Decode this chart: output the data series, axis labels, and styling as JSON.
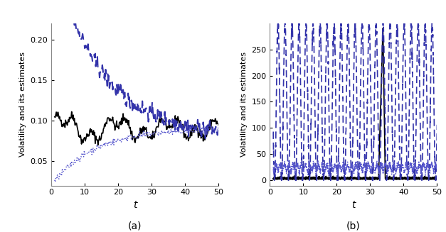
{
  "fig_width": 6.27,
  "fig_height": 3.27,
  "dpi": 100,
  "background_color": "#ffffff",
  "panel_a": {
    "xlim": [
      0,
      50
    ],
    "ylim": [
      0.02,
      0.22
    ],
    "yticks": [
      0.05,
      0.1,
      0.15,
      0.2
    ],
    "xticks": [
      0,
      10,
      20,
      30,
      40,
      50
    ],
    "xlabel": "t",
    "ylabel": "Volatility and its estimates",
    "label": "(a)",
    "solid_color": "#000000",
    "dashed_color": "#3333aa",
    "dotted_color": "#5555cc"
  },
  "panel_b": {
    "xlim": [
      0,
      50
    ],
    "ylim": [
      -10,
      300
    ],
    "yticks": [
      0,
      50,
      100,
      150,
      200,
      250
    ],
    "xticks": [
      0,
      10,
      20,
      30,
      40,
      50
    ],
    "xlabel": "t",
    "ylabel": "Volatility and its estimates",
    "label": "(b)",
    "solid_color": "#000000",
    "dashed_color": "#3333aa",
    "dotted_color": "#5555cc"
  }
}
